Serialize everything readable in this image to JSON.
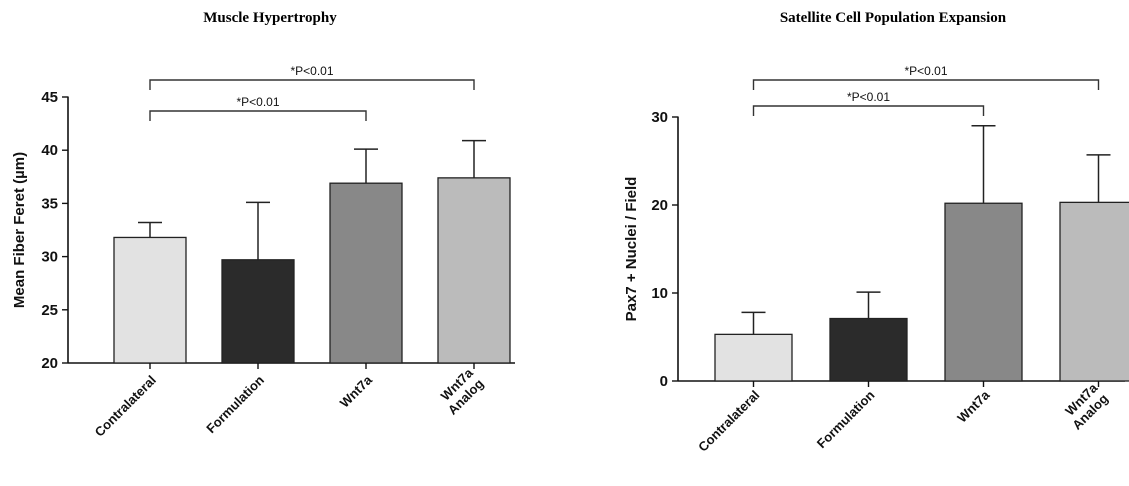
{
  "chart_data": [
    {
      "type": "bar",
      "title": "Muscle Hypertrophy",
      "ylabel": "Mean Fiber Feret (µm)",
      "xlabel": "",
      "categories": [
        [
          "Contralateral"
        ],
        [
          "Formulation"
        ],
        [
          "Wnt7a"
        ],
        [
          "Wnt7a",
          "Analog"
        ]
      ],
      "values": [
        31.8,
        29.7,
        36.9,
        37.4
      ],
      "error": [
        1.4,
        5.4,
        3.2,
        3.5
      ],
      "colors": [
        "#e2e2e2",
        "#2b2b2b",
        "#888888",
        "#bbbbbb"
      ],
      "ylim": [
        20,
        45
      ],
      "yticks": [
        20,
        25,
        30,
        35,
        40,
        45
      ],
      "grid": false,
      "annotations": [
        {
          "label": "*P<0.01",
          "from": 0,
          "to": 2
        },
        {
          "label": "*P<0.01",
          "from": 0,
          "to": 3
        }
      ]
    },
    {
      "type": "bar",
      "title": "Satellite Cell Population Expansion",
      "ylabel": "Pax7 + Nuclei / Field",
      "xlabel": "",
      "categories": [
        [
          "Contralateral"
        ],
        [
          "Formulation"
        ],
        [
          "Wnt7a"
        ],
        [
          "Wnt7a",
          "Analog"
        ]
      ],
      "values": [
        5.3,
        7.1,
        20.2,
        20.3
      ],
      "error": [
        2.5,
        3.0,
        8.8,
        5.4
      ],
      "colors": [
        "#e2e2e2",
        "#2b2b2b",
        "#888888",
        "#bbbbbb"
      ],
      "ylim": [
        0,
        30
      ],
      "yticks": [
        0,
        10,
        20,
        30
      ],
      "grid": false,
      "annotations": [
        {
          "label": "*P<0.01",
          "from": 0,
          "to": 2
        },
        {
          "label": "*P<0.01",
          "from": 0,
          "to": 3
        }
      ]
    }
  ]
}
